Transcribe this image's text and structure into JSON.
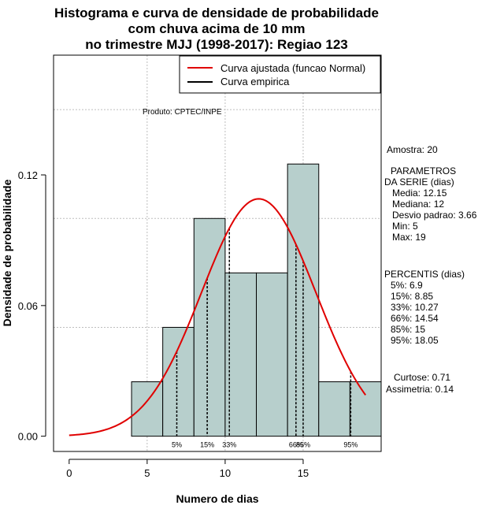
{
  "colors": {
    "bar_fill": "#b7cfcc",
    "bar_stroke": "#000000",
    "curve": "#e00000",
    "grid": "#bdbdbd",
    "percentile_line": "#000000"
  },
  "chart_data": {
    "type": "histogram",
    "title": [
      "Histograma e curva de densidade de probabilidade",
      "com chuva acima de 10 mm",
      "no trimestre MJJ (1998-2017): Regiao 123"
    ],
    "xlabel": "Numero de dias",
    "ylabel": "Densidade de probabilidade",
    "xlim": [
      -1,
      20
    ],
    "ylim": [
      -0.007,
      0.175
    ],
    "xticks": [
      0,
      5,
      10,
      15
    ],
    "yticks": [
      0.0,
      0.06,
      0.12
    ],
    "ytick_labels": [
      "0.00",
      "0.06",
      "0.12"
    ],
    "grid_x": [
      5,
      10,
      15
    ],
    "grid_y": [
      0.05,
      0.1,
      0.15
    ],
    "bins": [
      {
        "x0": 4,
        "x1": 6,
        "density": 0.025
      },
      {
        "x0": 6,
        "x1": 8,
        "density": 0.05
      },
      {
        "x0": 8,
        "x1": 10,
        "density": 0.1
      },
      {
        "x0": 10,
        "x1": 12,
        "density": 0.075
      },
      {
        "x0": 12,
        "x1": 14,
        "density": 0.075
      },
      {
        "x0": 14,
        "x1": 16,
        "density": 0.125
      },
      {
        "x0": 16,
        "x1": 18,
        "density": 0.025
      },
      {
        "x0": 18,
        "x1": 20,
        "density": 0.025
      }
    ],
    "normal_curve": {
      "mean": 12.15,
      "sd": 3.66,
      "x_from": 0,
      "x_to": 19,
      "label": "Curva ajustada (funcao Normal)"
    },
    "empirical_label": "Curva empirica",
    "percentiles": [
      {
        "label": "5%",
        "value": 6.9
      },
      {
        "label": "15%",
        "value": 8.85
      },
      {
        "label": "33%",
        "value": 10.27
      },
      {
        "label": "66%",
        "value": 14.54
      },
      {
        "label": "85%",
        "value": 15
      },
      {
        "label": "95%",
        "value": 18.05
      }
    ],
    "legend_position": "top-right"
  },
  "product": "Produto: CPTEC/INPE",
  "stats": {
    "amostra": "Amostra: 20",
    "param_header_1": "PARAMETROS",
    "param_header_2": "DA SERIE (dias)",
    "media": "Media: 12.15",
    "mediana": "Mediana: 12",
    "desvio": "Desvio padrao: 3.66",
    "min": "Min: 5",
    "max": "Max: 19",
    "percentis_header": "PERCENTIS (dias)",
    "p5": "5%: 6.9",
    "p15": "15%: 8.85",
    "p33": "33%: 10.27",
    "p66": "66%: 14.54",
    "p85": "85%: 15",
    "p95": "95%: 18.05",
    "curtose": "Curtose: 0.71",
    "assimetria": "Assimetria: 0.14"
  }
}
